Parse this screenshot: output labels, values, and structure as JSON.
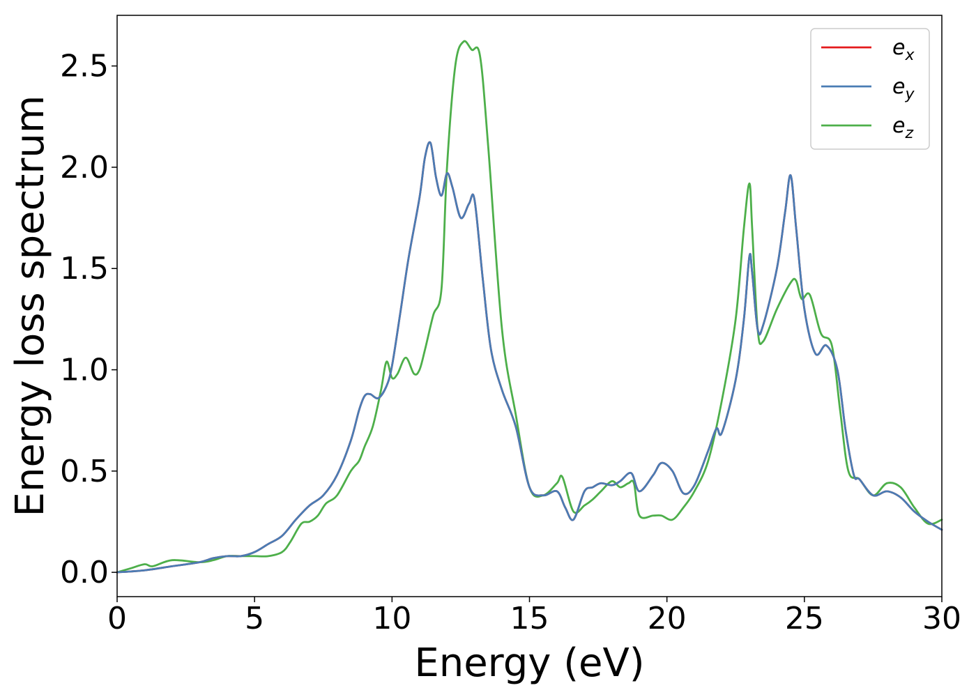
{
  "chart_data": {
    "type": "line",
    "title": "",
    "xlabel": "Energy (eV)",
    "ylabel": "Energy loss spectrum",
    "xlim": [
      0,
      30
    ],
    "ylim": [
      -0.12,
      2.75
    ],
    "xticks": [
      0,
      5,
      10,
      15,
      20,
      25,
      30
    ],
    "xtick_labels": [
      "0",
      "5",
      "10",
      "15",
      "20",
      "25",
      "30"
    ],
    "yticks": [
      0.0,
      0.5,
      1.0,
      1.5,
      2.0,
      2.5
    ],
    "ytick_labels": [
      "0.0",
      "0.5",
      "1.0",
      "1.5",
      "2.0",
      "2.5"
    ],
    "grid": false,
    "legend_position": "top-right",
    "series": [
      {
        "name": "e",
        "name_sub": "x",
        "color": "#e41a1c",
        "x": [
          0,
          1,
          2,
          3,
          3.5,
          4,
          4.5,
          5,
          5.5,
          6,
          6.5,
          7,
          7.5,
          8,
          8.5,
          8.8,
          9,
          9.2,
          9.5,
          9.8,
          10,
          10.3,
          10.6,
          11,
          11.2,
          11.4,
          11.6,
          11.8,
          12,
          12.2,
          12.5,
          12.8,
          13,
          13.3,
          13.6,
          14,
          14.5,
          15,
          15.5,
          16,
          16.3,
          16.6,
          17,
          17.3,
          17.6,
          18,
          18.3,
          18.7,
          19,
          19.5,
          19.8,
          20.2,
          20.6,
          21,
          21.5,
          21.8,
          22,
          22.5,
          22.8,
          23,
          23.1,
          23.3,
          23.5,
          24,
          24.3,
          24.5,
          24.7,
          25,
          25.4,
          25.8,
          26.2,
          26.5,
          26.8,
          27,
          27.5,
          28,
          28.5,
          29,
          29.5,
          30
        ],
        "y": [
          0,
          0.01,
          0.03,
          0.05,
          0.07,
          0.08,
          0.08,
          0.1,
          0.14,
          0.18,
          0.26,
          0.33,
          0.38,
          0.48,
          0.65,
          0.8,
          0.87,
          0.88,
          0.86,
          0.92,
          1.02,
          1.28,
          1.55,
          1.85,
          2.05,
          2.12,
          1.95,
          1.86,
          1.97,
          1.9,
          1.75,
          1.82,
          1.84,
          1.45,
          1.1,
          0.9,
          0.72,
          0.42,
          0.38,
          0.4,
          0.32,
          0.26,
          0.4,
          0.42,
          0.44,
          0.43,
          0.45,
          0.49,
          0.4,
          0.48,
          0.54,
          0.5,
          0.39,
          0.43,
          0.6,
          0.71,
          0.69,
          0.95,
          1.25,
          1.56,
          1.48,
          1.2,
          1.22,
          1.5,
          1.78,
          1.96,
          1.7,
          1.3,
          1.08,
          1.12,
          1.0,
          0.7,
          0.48,
          0.46,
          0.38,
          0.4,
          0.37,
          0.3,
          0.25,
          0.21
        ]
      },
      {
        "name": "e",
        "name_sub": "y",
        "color": "#4a7cb4",
        "x": [
          0,
          1,
          2,
          3,
          3.5,
          4,
          4.5,
          5,
          5.5,
          6,
          6.5,
          7,
          7.5,
          8,
          8.5,
          8.8,
          9,
          9.2,
          9.5,
          9.8,
          10,
          10.3,
          10.6,
          11,
          11.2,
          11.4,
          11.6,
          11.8,
          12,
          12.2,
          12.5,
          12.8,
          13,
          13.3,
          13.6,
          14,
          14.5,
          15,
          15.5,
          16,
          16.3,
          16.6,
          17,
          17.3,
          17.6,
          18,
          18.3,
          18.7,
          19,
          19.5,
          19.8,
          20.2,
          20.6,
          21,
          21.5,
          21.8,
          22,
          22.5,
          22.8,
          23,
          23.1,
          23.3,
          23.5,
          24,
          24.3,
          24.5,
          24.7,
          25,
          25.4,
          25.8,
          26.2,
          26.5,
          26.8,
          27,
          27.5,
          28,
          28.5,
          29,
          29.5,
          30
        ],
        "y": [
          0,
          0.01,
          0.03,
          0.05,
          0.07,
          0.08,
          0.08,
          0.1,
          0.14,
          0.18,
          0.26,
          0.33,
          0.38,
          0.48,
          0.65,
          0.8,
          0.87,
          0.88,
          0.86,
          0.92,
          1.02,
          1.28,
          1.55,
          1.85,
          2.05,
          2.12,
          1.95,
          1.86,
          1.97,
          1.9,
          1.75,
          1.82,
          1.84,
          1.45,
          1.1,
          0.9,
          0.72,
          0.42,
          0.38,
          0.4,
          0.32,
          0.26,
          0.4,
          0.42,
          0.44,
          0.43,
          0.45,
          0.49,
          0.4,
          0.48,
          0.54,
          0.5,
          0.39,
          0.43,
          0.6,
          0.71,
          0.69,
          0.95,
          1.25,
          1.56,
          1.48,
          1.2,
          1.22,
          1.5,
          1.78,
          1.96,
          1.7,
          1.3,
          1.08,
          1.12,
          1.0,
          0.7,
          0.48,
          0.46,
          0.38,
          0.4,
          0.37,
          0.3,
          0.25,
          0.21
        ]
      },
      {
        "name": "e",
        "name_sub": "z",
        "color": "#4daf4a",
        "x": [
          0,
          0.5,
          1,
          1.3,
          2,
          3,
          3.5,
          4,
          4.5,
          5,
          5.5,
          6,
          6.3,
          6.7,
          7,
          7.3,
          7.6,
          8,
          8.5,
          8.8,
          9,
          9.3,
          9.6,
          9.8,
          10,
          10.2,
          10.5,
          10.8,
          11,
          11.2,
          11.5,
          11.8,
          12,
          12.3,
          12.6,
          12.9,
          13.2,
          13.5,
          14,
          14.5,
          15,
          15.5,
          16,
          16.2,
          16.6,
          17,
          17.3,
          17.6,
          18,
          18.3,
          18.6,
          18.8,
          19,
          19.5,
          19.8,
          20.2,
          20.6,
          21,
          21.5,
          22,
          22.5,
          22.8,
          23,
          23.1,
          23.3,
          23.5,
          24,
          24.5,
          24.7,
          24.9,
          25.2,
          25.6,
          26,
          26.3,
          26.6,
          27,
          27.5,
          28,
          28.5,
          29,
          29.5,
          30
        ],
        "y": [
          0,
          0.02,
          0.04,
          0.03,
          0.06,
          0.05,
          0.06,
          0.08,
          0.08,
          0.08,
          0.08,
          0.1,
          0.15,
          0.24,
          0.25,
          0.28,
          0.34,
          0.38,
          0.5,
          0.55,
          0.62,
          0.72,
          0.9,
          1.04,
          0.96,
          0.98,
          1.06,
          0.98,
          1.0,
          1.1,
          1.27,
          1.4,
          2.0,
          2.5,
          2.62,
          2.58,
          2.55,
          2.1,
          1.2,
          0.78,
          0.42,
          0.38,
          0.44,
          0.47,
          0.3,
          0.33,
          0.36,
          0.4,
          0.45,
          0.42,
          0.44,
          0.44,
          0.28,
          0.28,
          0.28,
          0.26,
          0.32,
          0.4,
          0.55,
          0.85,
          1.25,
          1.7,
          1.92,
          1.7,
          1.2,
          1.14,
          1.3,
          1.43,
          1.44,
          1.35,
          1.37,
          1.18,
          1.12,
          0.8,
          0.5,
          0.46,
          0.38,
          0.44,
          0.42,
          0.32,
          0.24,
          0.26
        ]
      }
    ]
  }
}
